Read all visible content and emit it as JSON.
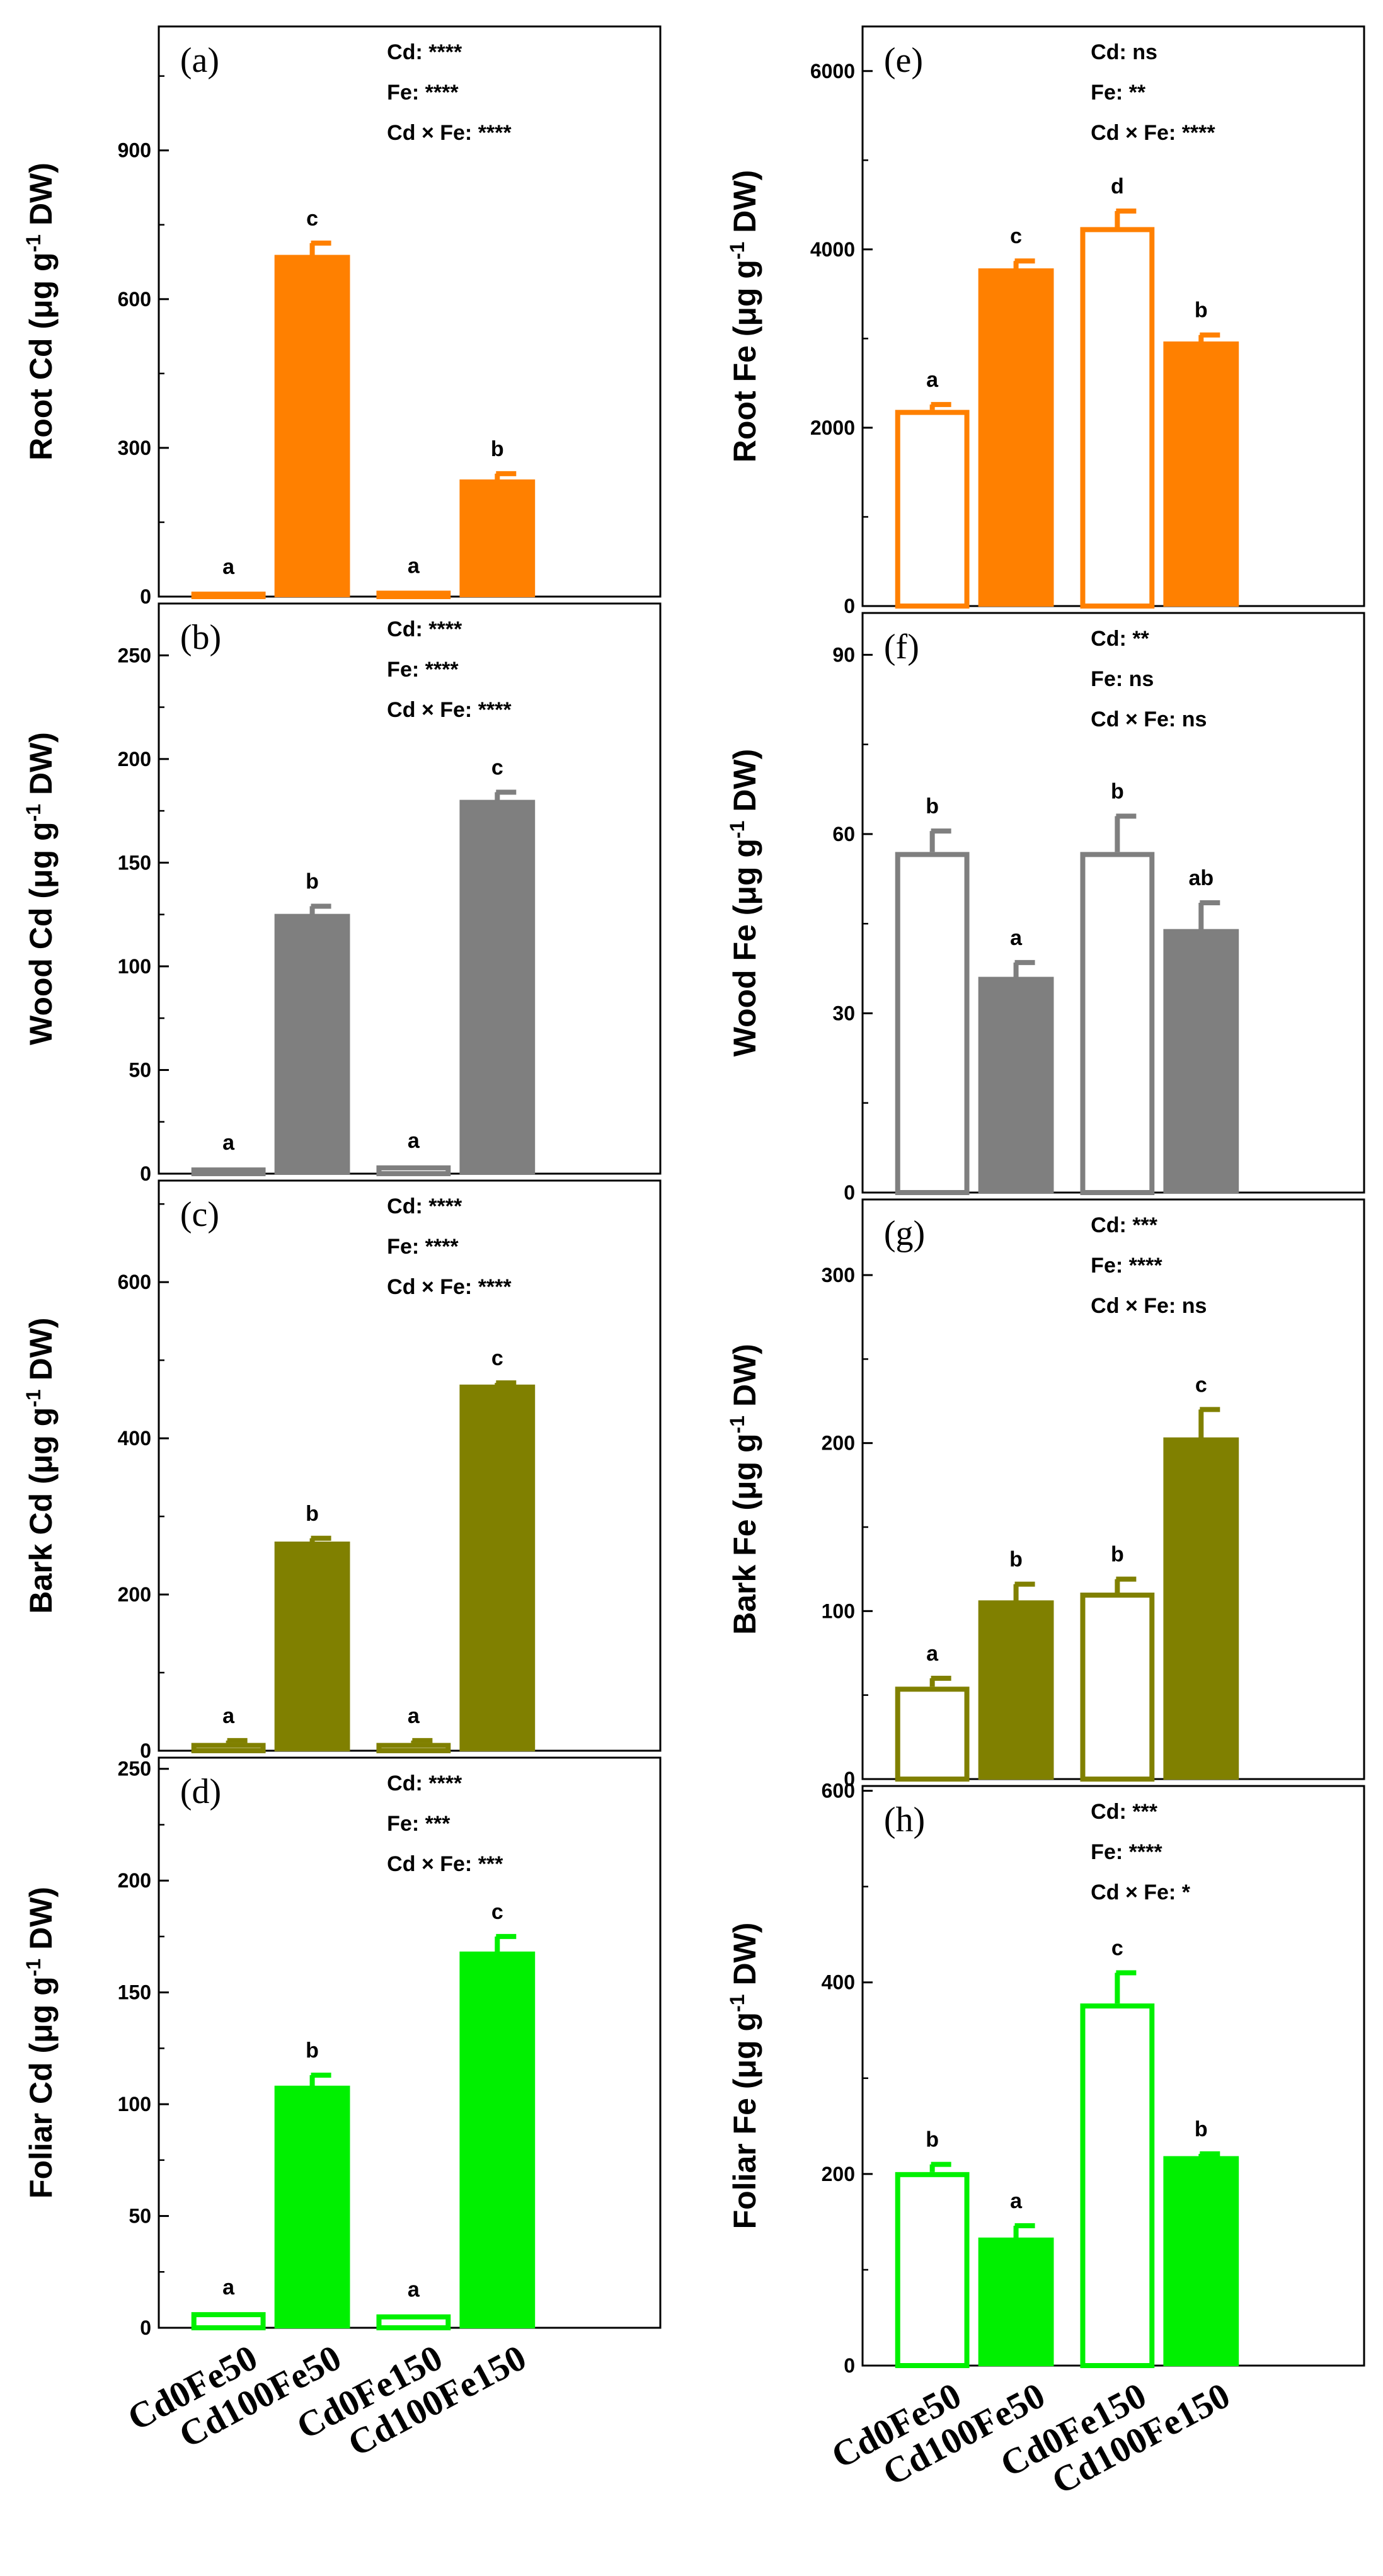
{
  "categories": [
    "Cd0Fe50",
    "Cd100Fe50",
    "Cd0Fe150",
    "Cd100Fe150"
  ],
  "chart_data": [
    {
      "type": "bar",
      "panel": "(a)",
      "color": "#ff8000",
      "ylabel_main": "Root Cd (μg g",
      "ylabel_sup": "-1",
      "ylabel_end": " DW)",
      "ylim": [
        0,
        1150
      ],
      "ticks": [
        0,
        300,
        600,
        900
      ],
      "values": [
        10,
        688,
        12,
        235
      ],
      "errors": [
        0,
        25,
        0,
        13
      ],
      "letters": [
        "a",
        "c",
        "a",
        "b"
      ],
      "stats": [
        "Cd: ****",
        "Fe: ****",
        "Cd × Fe: ****"
      ]
    },
    {
      "type": "bar",
      "panel": "(b)",
      "color": "#7f7f7f",
      "ylabel_main": "Wood Cd (μg g",
      "ylabel_sup": "-1",
      "ylabel_end": " DW)",
      "ylim": [
        0,
        275
      ],
      "ticks": [
        0,
        50,
        100,
        150,
        200,
        250
      ],
      "values": [
        3,
        125,
        4,
        180
      ],
      "errors": [
        0,
        4,
        0,
        4
      ],
      "letters": [
        "a",
        "b",
        "a",
        "c"
      ],
      "stats": [
        "Cd: ****",
        "Fe: ****",
        "Cd × Fe: ****"
      ]
    },
    {
      "type": "bar",
      "panel": "(c)",
      "color": "#808000",
      "ylabel_main": "Bark Cd (μg g",
      "ylabel_sup": "-1",
      "ylabel_end": " DW)",
      "ylim": [
        0,
        730
      ],
      "ticks": [
        0,
        200,
        400,
        600
      ],
      "values": [
        10,
        267,
        10,
        468
      ],
      "errors": [
        3,
        5,
        3,
        3
      ],
      "letters": [
        "a",
        "b",
        "a",
        "c"
      ],
      "stats": [
        "Cd: ****",
        "Fe: ****",
        "Cd × Fe: ****"
      ]
    },
    {
      "type": "bar",
      "panel": "(d)",
      "color": "#00f000",
      "ylabel_main": "Foliar Cd (μg g",
      "ylabel_sup": "-1",
      "ylabel_end": " DW)",
      "ylim": [
        0,
        255
      ],
      "ticks": [
        0,
        50,
        100,
        150,
        200,
        250
      ],
      "values": [
        7,
        108,
        6,
        168
      ],
      "errors": [
        0,
        5,
        0,
        7
      ],
      "letters": [
        "a",
        "b",
        "a",
        "c"
      ],
      "stats": [
        "Cd: ****",
        "Fe: ***",
        "Cd × Fe: ***"
      ]
    },
    {
      "type": "bar",
      "panel": "(e)",
      "color": "#ff8000",
      "ylabel_main": "Root Fe (μg g",
      "ylabel_sup": "-1",
      "ylabel_end": " DW)",
      "ylim": [
        0,
        6500
      ],
      "ticks": [
        0,
        2000,
        4000,
        6000
      ],
      "values": [
        2200,
        3780,
        4250,
        2960
      ],
      "errors": [
        60,
        90,
        180,
        80
      ],
      "letters": [
        "a",
        "c",
        "d",
        "b"
      ],
      "stats": [
        "Cd: ns",
        "Fe: **",
        "Cd × Fe: ****"
      ]
    },
    {
      "type": "bar",
      "panel": "(f)",
      "color": "#7f7f7f",
      "ylabel_main": "Wood Fe (μg g",
      "ylabel_sup": "-1",
      "ylabel_end": " DW)",
      "ylim": [
        0,
        97
      ],
      "ticks": [
        0,
        30,
        60,
        90
      ],
      "values": [
        57,
        36,
        57,
        44
      ],
      "errors": [
        3.5,
        2.5,
        6,
        4.5
      ],
      "letters": [
        "b",
        "a",
        "b",
        "ab"
      ],
      "stats": [
        "Cd: **",
        "Fe: ns",
        "Cd × Fe: ns"
      ]
    },
    {
      "type": "bar",
      "panel": "(g)",
      "color": "#808000",
      "ylabel_main": "Bark Fe (μg g",
      "ylabel_sup": "-1",
      "ylabel_end": " DW)",
      "ylim": [
        0,
        345
      ],
      "ticks": [
        0,
        100,
        200,
        300
      ],
      "values": [
        55,
        106,
        111,
        203
      ],
      "errors": [
        5,
        10,
        8,
        17
      ],
      "letters": [
        "a",
        "b",
        "b",
        "c"
      ],
      "stats": [
        "Cd: ***",
        "Fe: ****",
        "Cd × Fe: ns"
      ]
    },
    {
      "type": "bar",
      "panel": "(h)",
      "color": "#00f000",
      "ylabel_main": "Foliar Fe (μg g",
      "ylabel_sup": "-1",
      "ylabel_end": " DW)",
      "ylim": [
        0,
        605
      ],
      "ticks": [
        0,
        200,
        400,
        600
      ],
      "values": [
        202,
        133,
        378,
        218
      ],
      "errors": [
        8,
        13,
        32,
        3
      ],
      "letters": [
        "b",
        "a",
        "c",
        "b"
      ],
      "stats": [
        "Cd: ***",
        "Fe: ****",
        "Cd × Fe: *"
      ]
    }
  ]
}
